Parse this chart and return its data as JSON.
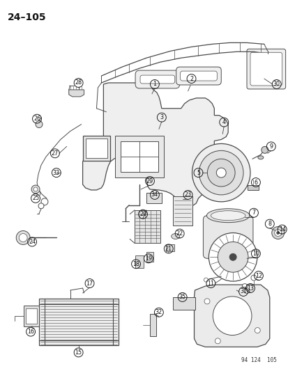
{
  "title": "24–105",
  "footer": "94 124  105",
  "background": "#ffffff",
  "figsize": [
    4.14,
    5.33
  ],
  "dpi": 100,
  "gray": "#4a4a4a",
  "dark": "#111111",
  "light_gray": "#d0d0d0",
  "mid_gray": "#aaaaaa"
}
